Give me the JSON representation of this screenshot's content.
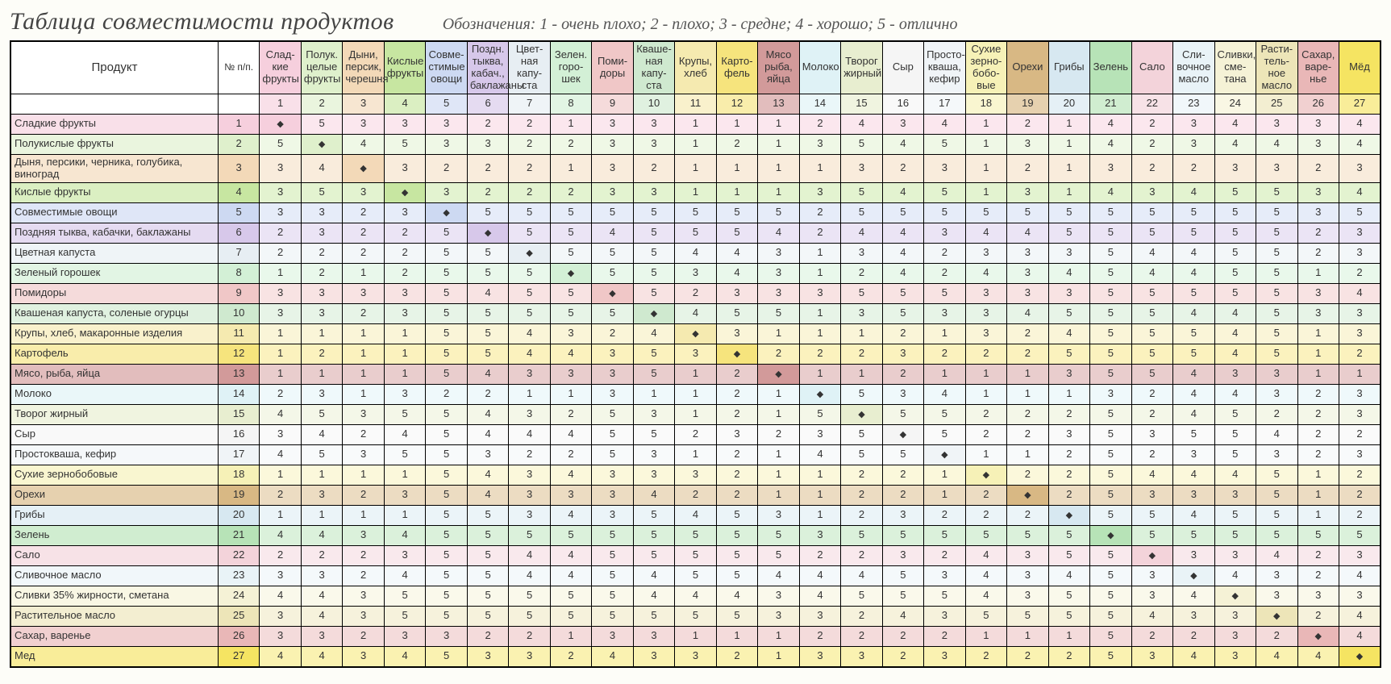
{
  "title": "Таблица совместимости продуктов",
  "legend": "Обозначения: 1 - очень плохо; 2 - плохо; 3 - средне; 4 - хорошо; 5 - отлично",
  "product_header": "Продукт",
  "no_header": "№ п/п.",
  "diamond": "◆",
  "colors": [
    "#f6cfdd",
    "#dff0cc",
    "#f3d9b8",
    "#c7e6a1",
    "#cdd9f2",
    "#d7c8ea",
    "#e7eef3",
    "#d3f0d6",
    "#f0c7c7",
    "#cfe9cf",
    "#f5eab0",
    "#f6e47d",
    "#d29a9a",
    "#dff2f6",
    "#e8eed0",
    "#f5f5f5",
    "#f0f4f7",
    "#f6f1b7",
    "#d8b884",
    "#d7e8f1",
    "#b7e3b7",
    "#f3d3da",
    "#e9f3f7",
    "#f5f2d6",
    "#ede5b8",
    "#e9b7b7",
    "#f5e462"
  ],
  "columns": [
    {
      "short": "Слад-кие фрукты"
    },
    {
      "short": "Полук. целые фрукты"
    },
    {
      "short": "Дыни, персик, черешня"
    },
    {
      "short": "Кислые фрукты"
    },
    {
      "short": "Совме-стимые овощи"
    },
    {
      "short": "Поздн. тыква, кабач., баклажаны"
    },
    {
      "short": "Цвет-ная капу-ста"
    },
    {
      "short": "Зелен. горо-шек"
    },
    {
      "short": "Поми-доры"
    },
    {
      "short": "Кваше-ная капу-ста"
    },
    {
      "short": "Крупы, хлеб"
    },
    {
      "short": "Карто-фель"
    },
    {
      "short": "Мясо рыба, яйца"
    },
    {
      "short": "Молоко"
    },
    {
      "short": "Творог жирный"
    },
    {
      "short": "Сыр"
    },
    {
      "short": "Просто-кваша, кефир"
    },
    {
      "short": "Сухие зерно-бобо-вые"
    },
    {
      "short": "Орехи"
    },
    {
      "short": "Грибы"
    },
    {
      "short": "Зелень"
    },
    {
      "short": "Сало"
    },
    {
      "short": "Сли-вочное масло"
    },
    {
      "short": "Сливки, сме-тана"
    },
    {
      "short": "Расти-тель-ное масло"
    },
    {
      "short": "Сахар, варе-нье"
    },
    {
      "short": "Мёд"
    }
  ],
  "rows": [
    {
      "name": "Сладкие фрукты",
      "vals": [
        0,
        5,
        3,
        3,
        3,
        2,
        2,
        1,
        3,
        3,
        1,
        1,
        1,
        2,
        4,
        3,
        4,
        1,
        2,
        1,
        4,
        2,
        3,
        4,
        3,
        3,
        4
      ]
    },
    {
      "name": "Полукислые фрукты",
      "vals": [
        5,
        0,
        4,
        5,
        3,
        3,
        2,
        2,
        3,
        3,
        1,
        2,
        1,
        3,
        5,
        4,
        5,
        1,
        3,
        1,
        4,
        2,
        3,
        4,
        4,
        3,
        4
      ]
    },
    {
      "name": "Дыня, персики, черника, голубика, виноград",
      "vals": [
        3,
        4,
        0,
        3,
        2,
        2,
        2,
        1,
        3,
        2,
        1,
        1,
        1,
        1,
        3,
        2,
        3,
        1,
        2,
        1,
        3,
        2,
        2,
        3,
        3,
        2,
        3
      ]
    },
    {
      "name": "Кислые фрукты",
      "vals": [
        3,
        5,
        3,
        0,
        3,
        2,
        2,
        2,
        3,
        3,
        1,
        1,
        1,
        3,
        5,
        4,
        5,
        1,
        3,
        1,
        4,
        3,
        4,
        5,
        5,
        3,
        4
      ]
    },
    {
      "name": "Совместимые овощи",
      "vals": [
        3,
        3,
        2,
        3,
        0,
        5,
        5,
        5,
        5,
        5,
        5,
        5,
        5,
        2,
        5,
        5,
        5,
        5,
        5,
        5,
        5,
        5,
        5,
        5,
        5,
        3,
        5
      ]
    },
    {
      "name": "Поздняя тыква, кабачки, баклажаны",
      "vals": [
        2,
        3,
        2,
        2,
        5,
        0,
        5,
        5,
        4,
        5,
        5,
        5,
        4,
        2,
        4,
        4,
        3,
        4,
        4,
        5,
        5,
        5,
        5,
        5,
        5,
        2,
        3
      ]
    },
    {
      "name": "Цветная капуста",
      "vals": [
        2,
        2,
        2,
        2,
        5,
        5,
        0,
        5,
        5,
        5,
        4,
        4,
        3,
        1,
        3,
        4,
        2,
        3,
        3,
        3,
        5,
        4,
        4,
        5,
        5,
        2,
        3
      ]
    },
    {
      "name": "Зеленый горошек",
      "vals": [
        1,
        2,
        1,
        2,
        5,
        5,
        5,
        0,
        5,
        5,
        3,
        4,
        3,
        1,
        2,
        4,
        2,
        4,
        3,
        4,
        5,
        4,
        4,
        5,
        5,
        1,
        2
      ]
    },
    {
      "name": "Помидоры",
      "vals": [
        3,
        3,
        3,
        3,
        5,
        4,
        5,
        5,
        0,
        5,
        2,
        3,
        3,
        3,
        5,
        5,
        5,
        3,
        3,
        3,
        5,
        5,
        5,
        5,
        5,
        3,
        4
      ]
    },
    {
      "name": "Квашеная капуста, соленые огурцы",
      "vals": [
        3,
        3,
        2,
        3,
        5,
        5,
        5,
        5,
        5,
        0,
        4,
        5,
        5,
        1,
        3,
        5,
        3,
        3,
        4,
        5,
        5,
        5,
        4,
        4,
        5,
        3,
        3
      ]
    },
    {
      "name": "Крупы, хлеб, макаронные изделия",
      "vals": [
        1,
        1,
        1,
        1,
        5,
        5,
        4,
        3,
        2,
        4,
        0,
        3,
        1,
        1,
        1,
        2,
        1,
        3,
        2,
        4,
        5,
        5,
        5,
        4,
        5,
        1,
        3
      ]
    },
    {
      "name": "Картофель",
      "vals": [
        1,
        2,
        1,
        1,
        5,
        5,
        4,
        4,
        3,
        5,
        3,
        0,
        2,
        2,
        2,
        3,
        2,
        2,
        2,
        5,
        5,
        5,
        5,
        4,
        5,
        1,
        2
      ]
    },
    {
      "name": "Мясо, рыба, яйца",
      "vals": [
        1,
        1,
        1,
        1,
        5,
        4,
        3,
        3,
        3,
        5,
        1,
        2,
        0,
        1,
        1,
        2,
        1,
        1,
        1,
        3,
        5,
        5,
        4,
        3,
        3,
        1,
        1
      ]
    },
    {
      "name": "Молоко",
      "vals": [
        2,
        3,
        1,
        3,
        2,
        2,
        1,
        1,
        3,
        1,
        1,
        2,
        1,
        0,
        5,
        3,
        4,
        1,
        1,
        1,
        3,
        2,
        4,
        4,
        3,
        2,
        3
      ]
    },
    {
      "name": "Творог жирный",
      "vals": [
        4,
        5,
        3,
        5,
        5,
        4,
        3,
        2,
        5,
        3,
        1,
        2,
        1,
        5,
        0,
        5,
        5,
        2,
        2,
        2,
        5,
        2,
        4,
        5,
        2,
        2,
        3
      ]
    },
    {
      "name": "Сыр",
      "vals": [
        3,
        4,
        2,
        4,
        5,
        4,
        4,
        4,
        5,
        5,
        2,
        3,
        2,
        3,
        5,
        0,
        5,
        2,
        2,
        3,
        5,
        3,
        5,
        5,
        4,
        2,
        2
      ]
    },
    {
      "name": "Простокваша, кефир",
      "vals": [
        4,
        5,
        3,
        5,
        5,
        3,
        2,
        2,
        5,
        3,
        1,
        2,
        1,
        4,
        5,
        5,
        0,
        1,
        1,
        2,
        5,
        2,
        3,
        5,
        3,
        2,
        3
      ]
    },
    {
      "name": "Сухие зернобобовые",
      "vals": [
        1,
        1,
        1,
        1,
        5,
        4,
        3,
        4,
        3,
        3,
        3,
        2,
        1,
        1,
        2,
        2,
        1,
        0,
        2,
        2,
        5,
        4,
        4,
        4,
        5,
        1,
        2
      ]
    },
    {
      "name": "Орехи",
      "vals": [
        2,
        3,
        2,
        3,
        5,
        4,
        3,
        3,
        3,
        4,
        2,
        2,
        1,
        1,
        2,
        2,
        1,
        2,
        0,
        2,
        5,
        3,
        3,
        3,
        5,
        1,
        2
      ]
    },
    {
      "name": "Грибы",
      "vals": [
        1,
        1,
        1,
        1,
        5,
        5,
        3,
        4,
        3,
        5,
        4,
        5,
        3,
        1,
        2,
        3,
        2,
        2,
        2,
        0,
        5,
        5,
        4,
        5,
        5,
        1,
        2
      ]
    },
    {
      "name": "Зелень",
      "vals": [
        4,
        4,
        3,
        4,
        5,
        5,
        5,
        5,
        5,
        5,
        5,
        5,
        5,
        3,
        5,
        5,
        5,
        5,
        5,
        5,
        0,
        5,
        5,
        5,
        5,
        5,
        5
      ]
    },
    {
      "name": "Сало",
      "vals": [
        2,
        2,
        2,
        3,
        5,
        5,
        4,
        4,
        5,
        5,
        5,
        5,
        5,
        2,
        2,
        3,
        2,
        4,
        3,
        5,
        5,
        0,
        3,
        3,
        4,
        2,
        3
      ]
    },
    {
      "name": "Сливочное масло",
      "vals": [
        3,
        3,
        2,
        4,
        5,
        5,
        4,
        4,
        5,
        4,
        5,
        5,
        4,
        4,
        4,
        5,
        3,
        4,
        3,
        4,
        5,
        3,
        0,
        4,
        3,
        2,
        4
      ]
    },
    {
      "name": "Сливки 35% жирности, сметана",
      "vals": [
        4,
        4,
        3,
        5,
        5,
        5,
        5,
        5,
        5,
        4,
        4,
        4,
        3,
        4,
        5,
        5,
        5,
        4,
        3,
        5,
        5,
        3,
        4,
        0,
        3,
        3,
        3
      ]
    },
    {
      "name": "Растительное масло",
      "vals": [
        3,
        4,
        3,
        5,
        5,
        5,
        5,
        5,
        5,
        5,
        5,
        5,
        3,
        3,
        2,
        4,
        3,
        5,
        5,
        5,
        5,
        4,
        3,
        3,
        0,
        2,
        4
      ]
    },
    {
      "name": "Сахар, варенье",
      "vals": [
        3,
        3,
        2,
        3,
        3,
        2,
        2,
        1,
        3,
        3,
        1,
        1,
        1,
        2,
        2,
        2,
        2,
        1,
        1,
        1,
        5,
        2,
        2,
        3,
        2,
        0,
        4
      ]
    },
    {
      "name": "Мед",
      "vals": [
        4,
        4,
        3,
        4,
        5,
        3,
        3,
        2,
        4,
        3,
        3,
        2,
        1,
        3,
        3,
        2,
        3,
        2,
        2,
        2,
        5,
        3,
        4,
        3,
        4,
        4,
        0
      ]
    }
  ]
}
